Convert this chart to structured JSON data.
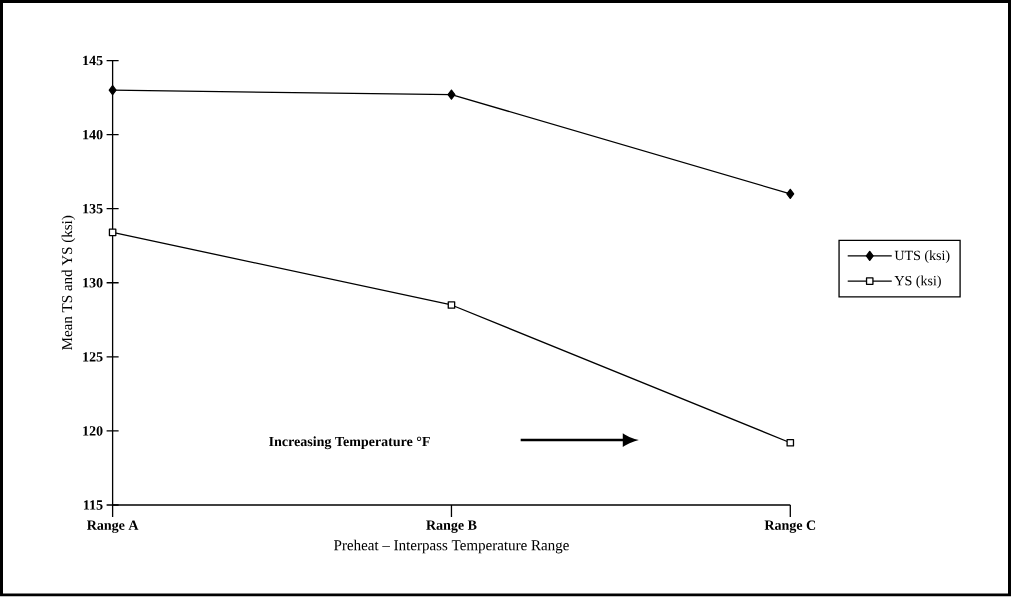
{
  "chart_data": {
    "type": "line",
    "categories": [
      "Range A",
      "Range B",
      "Range C"
    ],
    "xlabel": "Preheat – Interpass Temperature Range",
    "ylabel": "Mean TS and YS (ksi)",
    "ylim": [
      115,
      145
    ],
    "yticks": [
      115,
      120,
      125,
      130,
      135,
      140,
      145
    ],
    "series": [
      {
        "name": "UTS (ksi)",
        "color": "#000000",
        "marker": "diamond",
        "values": [
          143.0,
          142.7,
          136.0
        ]
      },
      {
        "name": "YS (ksi)",
        "color": "#000000",
        "marker": "square",
        "values": [
          133.4,
          128.5,
          119.2
        ]
      }
    ],
    "annotations": [
      "Increasing Temperature °F"
    ],
    "legend": "right",
    "grid": false,
    "line_style": "solid"
  }
}
